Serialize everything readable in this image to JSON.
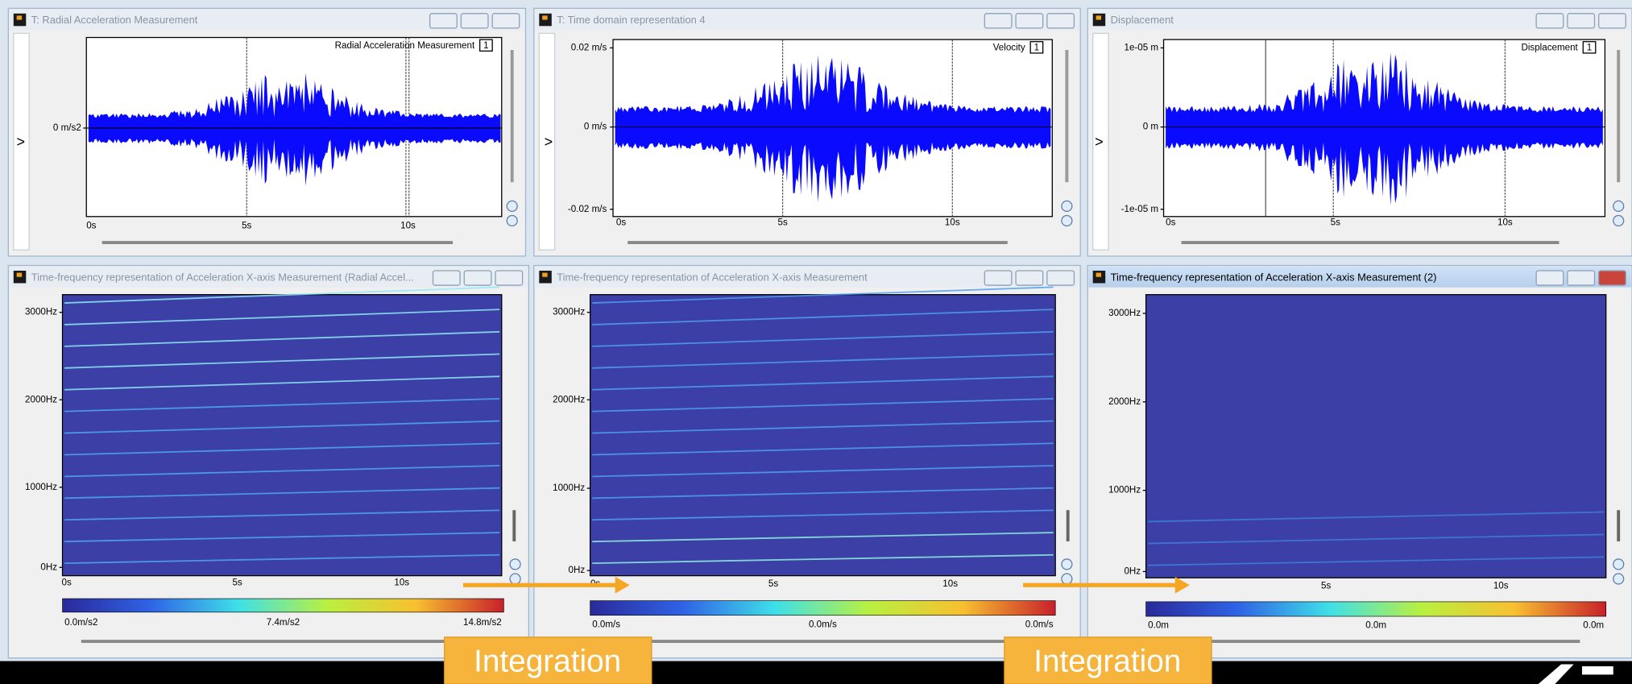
{
  "windows": [
    {
      "title": "T: Radial Acceleration Measurement",
      "legend": "Radial Acceleration Measurement",
      "legend_index": "1",
      "side_label": ">",
      "yticks": [
        "0 m/s2"
      ],
      "xticks": [
        "0s",
        "5s",
        "10s"
      ]
    },
    {
      "title": "T: Time domain representation 4",
      "legend": "Velocity",
      "legend_index": "1",
      "side_label": ">",
      "yticks": [
        "0.02 m/s",
        "0 m/s",
        "-0.02 m/s"
      ],
      "xticks": [
        "0s",
        "5s",
        "10s"
      ]
    },
    {
      "title": "Displacement",
      "legend": "Displacement",
      "legend_index": "1",
      "side_label": ">",
      "yticks": [
        "1e-05 m",
        "0 m",
        "-1e-05 m"
      ],
      "xticks": [
        "0s",
        "5s",
        "10s"
      ]
    },
    {
      "title": "Time-frequency representation of Acceleration X-axis Measurement (Radial Accel...",
      "yticks": [
        "3000Hz",
        "2000Hz",
        "1000Hz",
        "0Hz"
      ],
      "xticks": [
        "0s",
        "5s",
        "10s"
      ],
      "colorbar_labels": [
        "0.0m/s2",
        "7.4m/s2",
        "14.8m/s2"
      ]
    },
    {
      "title": "Time-frequency representation of Acceleration X-axis Measurement",
      "yticks": [
        "3000Hz",
        "2000Hz",
        "1000Hz",
        "0Hz"
      ],
      "xticks": [
        "0s",
        "5s",
        "10s"
      ],
      "colorbar_labels": [
        "0.0m/s",
        "0.0m/s",
        "0.0m/s"
      ]
    },
    {
      "title": "Time-frequency representation of Acceleration X-axis Measurement (2)",
      "yticks": [
        "3000Hz",
        "2000Hz",
        "1000Hz",
        "0Hz"
      ],
      "xticks": [
        "5s",
        "10s"
      ],
      "colorbar_labels": [
        "0.0m",
        "0.0m",
        "0.0m"
      ]
    }
  ],
  "annotations": [
    "Integration",
    "Integration"
  ]
}
